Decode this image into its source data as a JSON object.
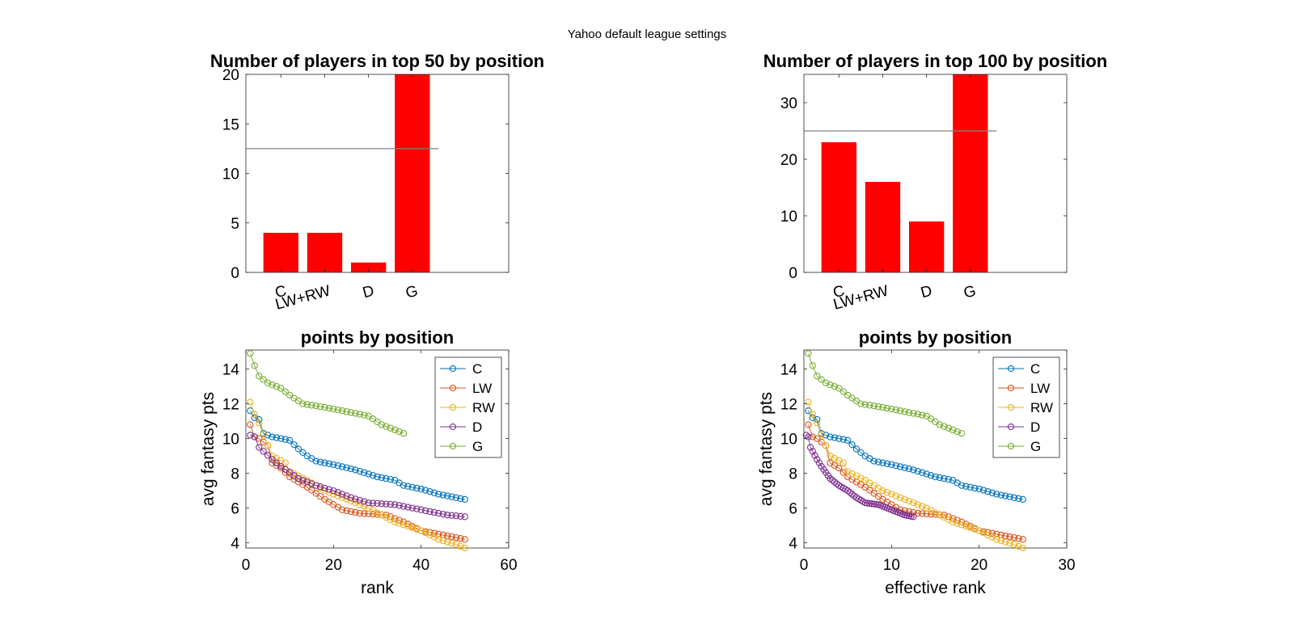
{
  "figure_title": "Yahoo default league settings",
  "colors": {
    "bar": "#ff0000",
    "reference_line": "#808080",
    "C": "#0072bd",
    "LW": "#d95319",
    "RW": "#edb120",
    "D": "#7e2f8e",
    "G": "#77ac30"
  },
  "chart_data": [
    {
      "type": "bar",
      "title": "Number of players in top 50 by position",
      "categories": [
        "C",
        "LW+RW",
        "D",
        "G"
      ],
      "values": [
        4,
        4,
        1,
        20
      ],
      "reference_line": 12.5,
      "xlim": [
        0.2,
        6.2
      ],
      "ylim": [
        0,
        20
      ],
      "yticks": [
        0,
        5,
        10,
        15,
        20
      ],
      "xlabel": "",
      "ylabel": ""
    },
    {
      "type": "bar",
      "title": "Number of players in top 100 by position",
      "categories": [
        "C",
        "LW+RW",
        "D",
        "G"
      ],
      "values": [
        23,
        16,
        9,
        35
      ],
      "reference_line": 25,
      "xlim": [
        0.2,
        6.2
      ],
      "ylim": [
        0,
        35
      ],
      "yticks": [
        0,
        10,
        20,
        30
      ],
      "xlabel": "",
      "ylabel": ""
    },
    {
      "type": "line",
      "title": "points by position",
      "xlabel": "rank",
      "ylabel": "avg fantasy pts",
      "xlim": [
        0,
        60
      ],
      "ylim": [
        3.7,
        15.1
      ],
      "xticks": [
        0,
        20,
        40,
        60
      ],
      "yticks": [
        4,
        6,
        8,
        10,
        12,
        14
      ],
      "legend_position": "top-right",
      "series": [
        {
          "name": "C",
          "x0": 1,
          "dx": 1,
          "count": 50,
          "anchors": [
            [
              1,
              11.6
            ],
            [
              2,
              11.2
            ],
            [
              3,
              11.1
            ],
            [
              4,
              10.3
            ],
            [
              6,
              10.1
            ],
            [
              10,
              9.9
            ],
            [
              12,
              9.4
            ],
            [
              14,
              9.0
            ],
            [
              16,
              8.7
            ],
            [
              20,
              8.5
            ],
            [
              25,
              8.2
            ],
            [
              30,
              7.8
            ],
            [
              34,
              7.6
            ],
            [
              36,
              7.3
            ],
            [
              40,
              7.1
            ],
            [
              44,
              6.8
            ],
            [
              50,
              6.5
            ]
          ]
        },
        {
          "name": "LW",
          "x0": 1,
          "dx": 1,
          "count": 50,
          "anchors": [
            [
              1,
              10.8
            ],
            [
              2,
              10.1
            ],
            [
              3,
              10.0
            ],
            [
              5,
              9.6
            ],
            [
              6,
              8.6
            ],
            [
              8,
              8.3
            ],
            [
              10,
              7.8
            ],
            [
              14,
              7.2
            ],
            [
              18,
              6.5
            ],
            [
              22,
              5.9
            ],
            [
              26,
              5.7
            ],
            [
              32,
              5.6
            ],
            [
              36,
              5.2
            ],
            [
              40,
              4.7
            ],
            [
              44,
              4.5
            ],
            [
              50,
              4.2
            ]
          ]
        },
        {
          "name": "RW",
          "x0": 1,
          "dx": 1,
          "count": 50,
          "anchors": [
            [
              1,
              12.1
            ],
            [
              2,
              11.4
            ],
            [
              3,
              10.9
            ],
            [
              5,
              9.6
            ],
            [
              6,
              9.0
            ],
            [
              9,
              8.6
            ],
            [
              10,
              8.1
            ],
            [
              14,
              7.6
            ],
            [
              18,
              7.0
            ],
            [
              22,
              6.6
            ],
            [
              28,
              6.0
            ],
            [
              34,
              5.2
            ],
            [
              40,
              4.7
            ],
            [
              44,
              4.2
            ],
            [
              48,
              3.9
            ],
            [
              50,
              3.7
            ]
          ]
        },
        {
          "name": "D",
          "x0": 1,
          "dx": 1,
          "count": 50,
          "anchors": [
            [
              1,
              10.2
            ],
            [
              2,
              10.1
            ],
            [
              3,
              9.5
            ],
            [
              6,
              8.8
            ],
            [
              8,
              8.4
            ],
            [
              12,
              7.7
            ],
            [
              16,
              7.3
            ],
            [
              20,
              7.0
            ],
            [
              24,
              6.6
            ],
            [
              28,
              6.3
            ],
            [
              34,
              6.2
            ],
            [
              40,
              5.9
            ],
            [
              46,
              5.6
            ],
            [
              50,
              5.5
            ]
          ]
        },
        {
          "name": "G",
          "x0": 1,
          "dx": 1,
          "count": 36,
          "anchors": [
            [
              1,
              14.9
            ],
            [
              2,
              14.2
            ],
            [
              3,
              13.6
            ],
            [
              5,
              13.2
            ],
            [
              8,
              12.9
            ],
            [
              10,
              12.5
            ],
            [
              13,
              12.0
            ],
            [
              18,
              11.8
            ],
            [
              24,
              11.5
            ],
            [
              28,
              11.3
            ],
            [
              31,
              10.8
            ],
            [
              34,
              10.5
            ],
            [
              36,
              10.3
            ]
          ]
        }
      ]
    },
    {
      "type": "line",
      "title": "points by position",
      "xlabel": "effective rank",
      "ylabel": "avg fantasy pts",
      "xlim": [
        0,
        30
      ],
      "ylim": [
        3.7,
        15.1
      ],
      "xticks": [
        0,
        10,
        20,
        30
      ],
      "yticks": [
        4,
        6,
        8,
        10,
        12,
        14
      ],
      "legend_position": "top-right",
      "series": [
        {
          "name": "C",
          "x0": 0.5,
          "dx": 0.5,
          "count": 50,
          "anchors": [
            [
              0.5,
              11.6
            ],
            [
              1,
              11.2
            ],
            [
              1.5,
              11.1
            ],
            [
              2,
              10.3
            ],
            [
              3,
              10.1
            ],
            [
              5,
              9.9
            ],
            [
              6,
              9.4
            ],
            [
              7,
              9.0
            ],
            [
              8,
              8.7
            ],
            [
              10,
              8.5
            ],
            [
              12.5,
              8.2
            ],
            [
              15,
              7.8
            ],
            [
              17,
              7.6
            ],
            [
              18,
              7.3
            ],
            [
              20,
              7.1
            ],
            [
              22,
              6.8
            ],
            [
              25,
              6.5
            ]
          ]
        },
        {
          "name": "LW",
          "x0": 0.5,
          "dx": 0.5,
          "count": 50,
          "anchors": [
            [
              0.5,
              10.8
            ],
            [
              1,
              10.1
            ],
            [
              1.5,
              10.0
            ],
            [
              2.5,
              9.6
            ],
            [
              3,
              8.6
            ],
            [
              4,
              8.3
            ],
            [
              5,
              7.8
            ],
            [
              7,
              7.2
            ],
            [
              9,
              6.5
            ],
            [
              11,
              5.9
            ],
            [
              13,
              5.7
            ],
            [
              16,
              5.6
            ],
            [
              18,
              5.2
            ],
            [
              20,
              4.7
            ],
            [
              22,
              4.5
            ],
            [
              25,
              4.2
            ]
          ]
        },
        {
          "name": "RW",
          "x0": 0.5,
          "dx": 0.5,
          "count": 50,
          "anchors": [
            [
              0.5,
              12.1
            ],
            [
              1,
              11.4
            ],
            [
              1.5,
              10.9
            ],
            [
              2.5,
              9.6
            ],
            [
              3,
              9.0
            ],
            [
              4.5,
              8.6
            ],
            [
              5,
              8.1
            ],
            [
              7,
              7.6
            ],
            [
              9,
              7.0
            ],
            [
              11,
              6.6
            ],
            [
              14,
              6.0
            ],
            [
              17,
              5.2
            ],
            [
              20,
              4.7
            ],
            [
              22,
              4.2
            ],
            [
              24,
              3.9
            ],
            [
              25,
              3.7
            ]
          ]
        },
        {
          "name": "D",
          "x0": 0.25,
          "dx": 0.25,
          "count": 50,
          "anchors": [
            [
              0.25,
              10.2
            ],
            [
              0.5,
              10.1
            ],
            [
              0.75,
              9.5
            ],
            [
              1.5,
              8.8
            ],
            [
              2,
              8.4
            ],
            [
              3,
              7.7
            ],
            [
              4,
              7.3
            ],
            [
              5,
              7.0
            ],
            [
              6,
              6.6
            ],
            [
              7,
              6.3
            ],
            [
              8.5,
              6.2
            ],
            [
              10,
              5.9
            ],
            [
              11.5,
              5.6
            ],
            [
              12.5,
              5.5
            ]
          ]
        },
        {
          "name": "G",
          "x0": 0.5,
          "dx": 0.5,
          "count": 36,
          "anchors": [
            [
              0.5,
              14.9
            ],
            [
              1,
              14.2
            ],
            [
              1.5,
              13.6
            ],
            [
              2.5,
              13.2
            ],
            [
              4,
              12.9
            ],
            [
              5,
              12.5
            ],
            [
              6.5,
              12.0
            ],
            [
              9,
              11.8
            ],
            [
              12,
              11.5
            ],
            [
              14,
              11.3
            ],
            [
              15.5,
              10.8
            ],
            [
              17,
              10.5
            ],
            [
              18,
              10.3
            ]
          ]
        }
      ]
    }
  ]
}
